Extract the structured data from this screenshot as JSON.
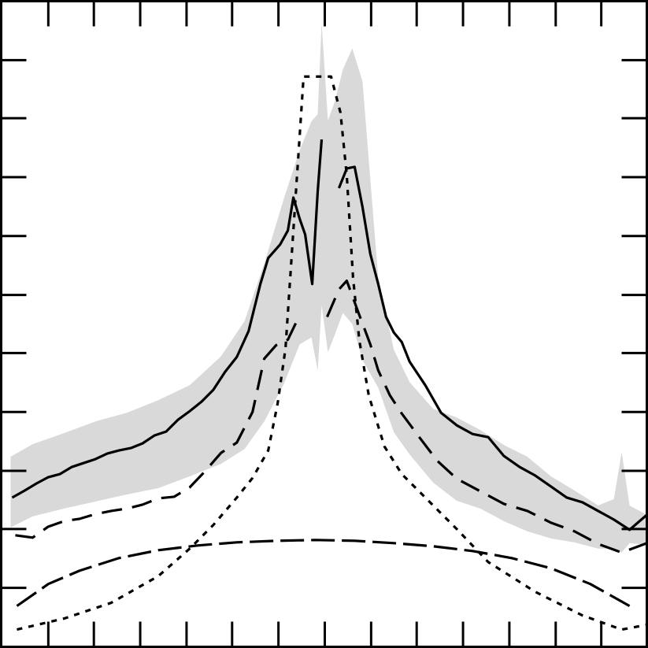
{
  "chart_data": {
    "type": "line",
    "title": "",
    "xlabel": "",
    "ylabel": "",
    "xlim": [
      0,
      822
    ],
    "ylim": [
      0,
      822
    ],
    "grid": false,
    "legend": "none",
    "tick_labels_shown": false,
    "x_ticks": [
      60,
      118,
      177,
      236,
      294,
      353,
      412,
      471,
      529,
      588,
      647,
      706,
      764
    ],
    "y_ticks": [
      75,
      150,
      224,
      299,
      374,
      448,
      523,
      598,
      673,
      747
    ],
    "colors": {
      "frame": "#000000",
      "band": "#d9d9d9",
      "line": "#000000"
    },
    "band": {
      "x": [
        12,
        40,
        80,
        120,
        160,
        200,
        240,
        280,
        310,
        335,
        360,
        380,
        395,
        403,
        408,
        416,
        425,
        435,
        447,
        460,
        480,
        500,
        520,
        550,
        580,
        610,
        640,
        670,
        700,
        730,
        760,
        780,
        790,
        800,
        822
      ],
      "upper": [
        242,
        258,
        272,
        287,
        298,
        314,
        333,
        370,
        415,
        488,
        571,
        632,
        669,
        678,
        794,
        670,
        695,
        735,
        762,
        720,
        470,
        378,
        337,
        303,
        292,
        276,
        257,
        242,
        217,
        199,
        180,
        188,
        248,
        180,
        168
      ],
      "lower": [
        152,
        166,
        176,
        185,
        194,
        202,
        217,
        233,
        252,
        287,
        335,
        385,
        394,
        352,
        435,
        375,
        398,
        425,
        411,
        365,
        330,
        273,
        245,
        209,
        186,
        176,
        160,
        147,
        138,
        133,
        125,
        125,
        120,
        132,
        130
      ]
    },
    "series": [
      {
        "style": "solid",
        "x": [
          14,
          30,
          45,
          60,
          75,
          90,
          105,
          120,
          135,
          150,
          165,
          180,
          195,
          210,
          225,
          240,
          255,
          270,
          285,
          300,
          315,
          330,
          340,
          355,
          365,
          372,
          380,
          387,
          396,
          403,
          408
        ],
        "y": [
          190,
          199,
          208,
          216,
          220,
          229,
          234,
          239,
          246,
          250,
          253,
          259,
          269,
          274,
          289,
          300,
          312,
          327,
          350,
          369,
          402,
          462,
          495,
          512,
          530,
          572,
          545,
          525,
          462,
          580,
          646
        ]
      },
      {
        "style": "solid",
        "x": [
          430,
          440,
          450,
          460,
          470,
          480,
          490,
          500,
          510,
          520,
          540,
          560,
          580,
          600,
          620,
          640,
          660,
          680,
          700,
          720,
          740,
          760,
          780,
          800,
          822
        ],
        "y": [
          584,
          609,
          611,
          560,
          500,
          462,
          420,
          400,
          388,
          363,
          333,
          298,
          282,
          271,
          267,
          243,
          229,
          218,
          204,
          190,
          184,
          173,
          162,
          149,
          168
        ]
      },
      {
        "style": "long-dash",
        "x": [
          18,
          40,
          60,
          80,
          100,
          120,
          140,
          160,
          180,
          200,
          220,
          240,
          260,
          280,
          300,
          320,
          335,
          350,
          365,
          375
        ],
        "y": [
          142,
          139,
          153,
          160,
          163,
          169,
          173,
          176,
          181,
          189,
          191,
          203,
          224,
          247,
          260,
          299,
          367,
          384,
          391,
          412
        ]
      },
      {
        "style": "long-dash",
        "x": [
          415,
          430,
          440,
          455,
          470,
          480,
          495,
          510,
          530,
          555,
          580,
          610,
          640,
          670,
          700,
          730,
          760,
          790,
          822
        ],
        "y": [
          420,
          455,
          466,
          425,
          385,
          352,
          320,
          297,
          270,
          237,
          214,
          198,
          182,
          173,
          158,
          147,
          131,
          120,
          132
        ]
      },
      {
        "style": "dense-dash",
        "x": [
          20,
          60,
          100,
          150,
          200,
          250,
          300,
          350,
          400,
          450,
          500,
          550,
          600,
          650,
          700,
          750,
          800
        ],
        "y": [
          52,
          80,
          97,
          113,
          123,
          129,
          133,
          135,
          136,
          135,
          132,
          128,
          122,
          113,
          100,
          80,
          52
        ]
      },
      {
        "style": "dotted",
        "x": [
          20,
          80,
          140,
          200,
          240,
          270,
          300,
          320,
          340,
          352,
          362,
          370,
          378,
          385,
          400,
          420,
          432,
          440,
          448,
          456,
          468,
          488,
          510,
          540,
          580,
          620,
          680,
          740,
          790,
          822
        ],
        "y": [
          22,
          36,
          56,
          90,
          125,
          155,
          190,
          215,
          250,
          310,
          380,
          500,
          620,
          726,
          726,
          726,
          680,
          600,
          470,
          390,
          320,
          255,
          220,
          190,
          150,
          108,
          70,
          40,
          22,
          28
        ]
      }
    ]
  }
}
